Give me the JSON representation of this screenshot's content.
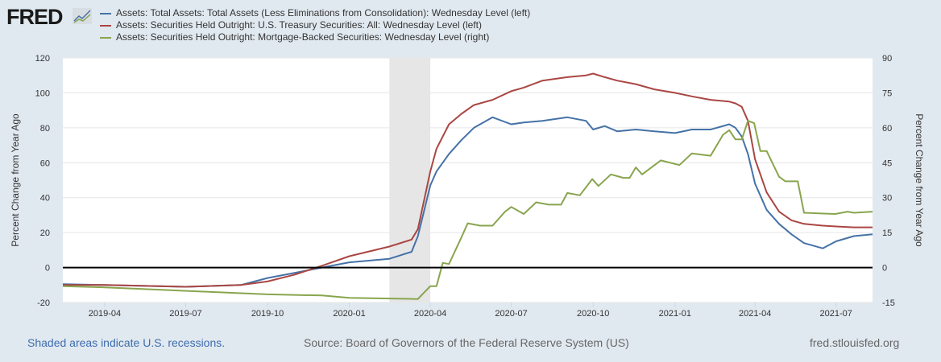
{
  "logo": "FRED",
  "footer": {
    "recession_note": "Shaded areas indicate U.S. recessions.",
    "source": "Source: Board of Governors of the Federal Reserve System (US)",
    "site": "fred.stlouisfed.org"
  },
  "chart_data": {
    "type": "line",
    "xlim": [
      "2019-02-13",
      "2021-08-11"
    ],
    "ylabel_left": "Percent Change from Year Ago",
    "ylabel_right": "Percent Change from Year Ago",
    "ylim_left": [
      -20,
      120
    ],
    "ylim_right": [
      -15,
      90
    ],
    "yticks_left": [
      "-20",
      "0",
      "20",
      "40",
      "60",
      "80",
      "100",
      "120"
    ],
    "yticks_right": [
      "-15",
      "0",
      "15",
      "30",
      "45",
      "60",
      "75",
      "90"
    ],
    "xticks": [
      {
        "date": "2019-04-01",
        "label": "2019-04"
      },
      {
        "date": "2019-07-01",
        "label": "2019-07"
      },
      {
        "date": "2019-10-01",
        "label": "2019-10"
      },
      {
        "date": "2020-01-01",
        "label": "2020-01"
      },
      {
        "date": "2020-04-01",
        "label": "2020-04"
      },
      {
        "date": "2020-07-01",
        "label": "2020-07"
      },
      {
        "date": "2020-10-01",
        "label": "2020-10"
      },
      {
        "date": "2021-01-01",
        "label": "2021-01"
      },
      {
        "date": "2021-04-01",
        "label": "2021-04"
      },
      {
        "date": "2021-07-01",
        "label": "2021-07"
      }
    ],
    "recessions": [
      [
        "2020-02-15",
        "2020-04-01"
      ]
    ],
    "grid": true,
    "legend_position": "top",
    "series": [
      {
        "name": "Assets: Total Assets: Total Assets (Less Eliminations from Consolidation): Wednesday Level (left)",
        "axis": "left",
        "color": "#4572a7",
        "x": [
          "2019-02-13",
          "2019-04-01",
          "2019-07-01",
          "2019-09-01",
          "2019-10-01",
          "2019-11-01",
          "2019-12-01",
          "2020-01-01",
          "2020-02-15",
          "2020-03-11",
          "2020-03-18",
          "2020-04-01",
          "2020-04-08",
          "2020-04-22",
          "2020-05-06",
          "2020-05-20",
          "2020-06-10",
          "2020-07-01",
          "2020-07-15",
          "2020-08-05",
          "2020-09-02",
          "2020-09-23",
          "2020-10-01",
          "2020-10-14",
          "2020-10-28",
          "2020-11-18",
          "2020-12-09",
          "2021-01-01",
          "2021-01-20",
          "2021-02-10",
          "2021-03-03",
          "2021-03-10",
          "2021-03-17",
          "2021-03-24",
          "2021-04-01",
          "2021-04-14",
          "2021-04-28",
          "2021-05-12",
          "2021-05-26",
          "2021-06-16",
          "2021-07-01",
          "2021-07-21",
          "2021-08-11"
        ],
        "y": [
          -9.5,
          -10,
          -11,
          -10,
          -6,
          -3,
          0,
          3,
          5,
          9,
          18,
          47,
          55,
          65,
          73,
          80,
          86,
          82,
          83,
          84,
          86,
          84,
          79,
          81,
          78,
          79,
          78,
          77,
          79,
          79,
          82,
          80,
          75,
          65,
          48,
          33,
          25,
          19,
          14,
          11,
          15,
          18,
          19
        ]
      },
      {
        "name": "Assets: Securities Held Outright: U.S. Treasury Securities: All: Wednesday Level (left)",
        "axis": "left",
        "color": "#aa4643",
        "x": [
          "2019-02-13",
          "2019-04-01",
          "2019-07-01",
          "2019-09-01",
          "2019-10-01",
          "2019-11-01",
          "2019-12-01",
          "2020-01-01",
          "2020-02-15",
          "2020-03-11",
          "2020-03-18",
          "2020-04-01",
          "2020-04-08",
          "2020-04-22",
          "2020-05-06",
          "2020-05-20",
          "2020-06-10",
          "2020-07-01",
          "2020-07-15",
          "2020-08-05",
          "2020-09-02",
          "2020-09-23",
          "2020-10-01",
          "2020-10-14",
          "2020-10-28",
          "2020-11-18",
          "2020-12-09",
          "2021-01-01",
          "2021-01-20",
          "2021-02-10",
          "2021-03-03",
          "2021-03-10",
          "2021-03-17",
          "2021-03-24",
          "2021-04-01",
          "2021-04-14",
          "2021-04-28",
          "2021-05-12",
          "2021-05-26",
          "2021-06-16",
          "2021-07-01",
          "2021-07-21",
          "2021-08-11"
        ],
        "y": [
          -10,
          -10,
          -11,
          -10,
          -8,
          -4,
          1,
          6.5,
          12,
          16,
          22,
          55,
          68,
          82,
          88,
          93,
          96,
          101,
          103,
          107,
          109,
          110,
          111,
          109,
          107,
          105,
          102,
          100,
          98,
          96,
          95,
          94,
          92,
          84,
          62,
          43,
          32,
          27,
          25,
          24,
          23.5,
          23,
          23
        ]
      },
      {
        "name": "Assets: Securities Held Outright: Mortgage-Backed Securities: Wednesday Level (right)",
        "axis": "right",
        "color": "#89a54e",
        "x": [
          "2019-02-13",
          "2019-04-01",
          "2019-06-01",
          "2019-08-01",
          "2019-10-01",
          "2019-12-01",
          "2020-01-01",
          "2020-03-18",
          "2020-04-01",
          "2020-04-08",
          "2020-04-15",
          "2020-04-22",
          "2020-05-06",
          "2020-05-13",
          "2020-05-27",
          "2020-06-10",
          "2020-06-24",
          "2020-07-01",
          "2020-07-15",
          "2020-07-29",
          "2020-08-12",
          "2020-08-26",
          "2020-09-02",
          "2020-09-16",
          "2020-09-30",
          "2020-10-07",
          "2020-10-21",
          "2020-11-04",
          "2020-11-11",
          "2020-11-18",
          "2020-11-25",
          "2020-12-16",
          "2021-01-06",
          "2021-01-20",
          "2021-02-10",
          "2021-02-24",
          "2021-03-03",
          "2021-03-10",
          "2021-03-17",
          "2021-03-24",
          "2021-03-31",
          "2021-04-07",
          "2021-04-14",
          "2021-04-28",
          "2021-05-05",
          "2021-05-19",
          "2021-05-26",
          "2021-06-30",
          "2021-07-14",
          "2021-07-21",
          "2021-08-11"
        ],
        "y": [
          -8,
          -8.5,
          -9.5,
          -10.5,
          -11.5,
          -12,
          -13,
          -13.5,
          -8,
          -8,
          2,
          1.5,
          13,
          19,
          18,
          18,
          24,
          26,
          23,
          28,
          27,
          27,
          32,
          31,
          38,
          35,
          40,
          38.5,
          38.5,
          43,
          40,
          46,
          44,
          49,
          48,
          57,
          59,
          55,
          55,
          63,
          62,
          50,
          50,
          39,
          37,
          37,
          23.5,
          23,
          24,
          23.5,
          24
        ]
      }
    ]
  }
}
